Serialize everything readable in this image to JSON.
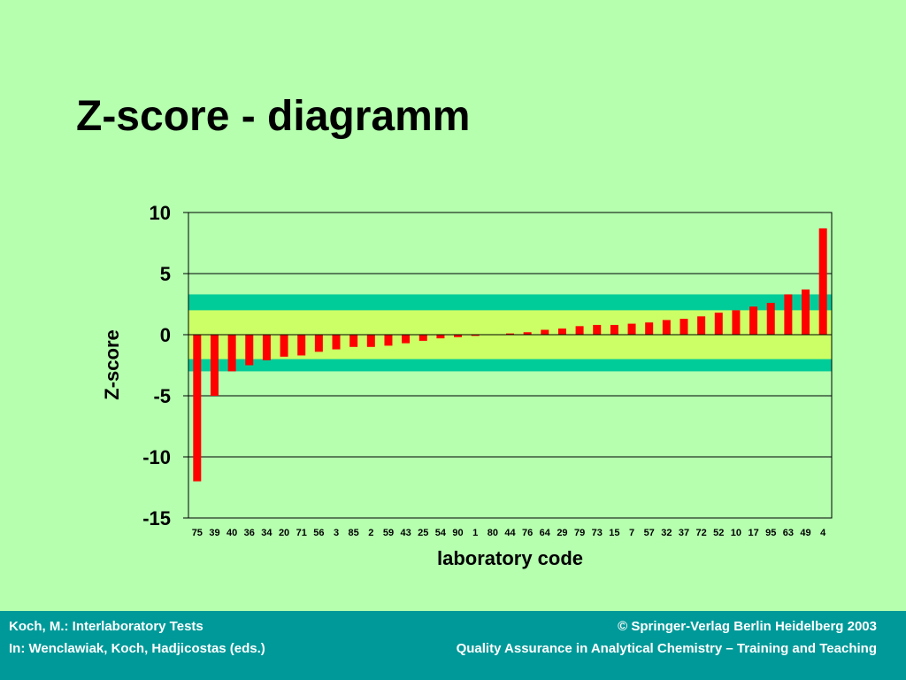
{
  "slide": {
    "title": "Z-score - diagramm"
  },
  "chart_data": {
    "type": "bar",
    "ylabel": "Z-score",
    "xlabel": "laboratory code",
    "ylim": [
      -15,
      10
    ],
    "yticks": [
      10,
      5,
      0,
      -5,
      -10,
      -15
    ],
    "grid": true,
    "colors": {
      "bar": "#ff0000",
      "acceptable_band": "#ccff66",
      "warning_band": "#00cc99",
      "plot_bg": "#b5ffaf"
    },
    "bands": {
      "acceptable": [
        -2,
        2
      ],
      "questionable": [
        -3,
        3.3
      ]
    },
    "categories": [
      "75",
      "39",
      "40",
      "36",
      "34",
      "20",
      "71",
      "56",
      "3",
      "85",
      "2",
      "59",
      "43",
      "25",
      "54",
      "90",
      "1",
      "80",
      "44",
      "76",
      "64",
      "29",
      "79",
      "73",
      "15",
      "7",
      "57",
      "32",
      "37",
      "72",
      "52",
      "10",
      "17",
      "95",
      "63",
      "49",
      "4"
    ],
    "values": [
      -12.0,
      -5.0,
      -3.0,
      -2.5,
      -2.1,
      -1.8,
      -1.7,
      -1.4,
      -1.2,
      -1.0,
      -1.0,
      -0.9,
      -0.7,
      -0.5,
      -0.3,
      -0.2,
      -0.1,
      0.0,
      0.1,
      0.2,
      0.4,
      0.5,
      0.7,
      0.8,
      0.8,
      0.9,
      1.0,
      1.2,
      1.3,
      1.5,
      1.8,
      2.0,
      2.3,
      2.6,
      3.3,
      3.7,
      8.7
    ]
  },
  "footer": {
    "left_line1": "Koch, M.: Interlaboratory Tests",
    "left_line2": "In:  Wenclawiak, Koch, Hadjicostas (eds.)",
    "right_line1": "© Springer-Verlag Berlin Heidelberg 2003",
    "right_line2": "Quality Assurance in Analytical Chemistry – Training and Teaching"
  }
}
